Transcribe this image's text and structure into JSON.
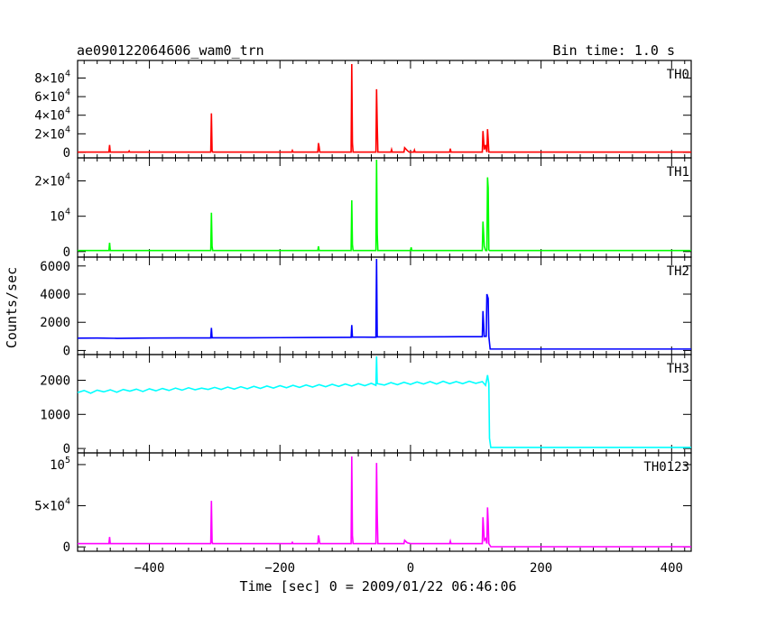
{
  "chart_data": {
    "type": "line",
    "title": "ae090122064606_wam0_trn",
    "subtitle": "Bin time: 1.0 s",
    "xlabel": "Time [sec] 0 = 2009/01/22 06:46:06",
    "ylabel": "Counts/sec",
    "xlim": [
      -510,
      430
    ],
    "x_ticks": [
      -400,
      -200,
      0,
      200,
      400
    ],
    "x_tick_labels": [
      "−400",
      "−200",
      "0",
      "200",
      "400"
    ],
    "grid": false,
    "panels": [
      {
        "name": "TH0",
        "color": "#ff0000",
        "ylim": [
          -3000,
          97000
        ],
        "yticks": [
          {
            "value": 0,
            "label": "0"
          },
          {
            "value": 20000,
            "label": "2×10",
            "exp": "4"
          },
          {
            "value": 40000,
            "label": "4×10",
            "exp": "4"
          },
          {
            "value": 60000,
            "label": "6×10",
            "exp": "4"
          },
          {
            "value": 80000,
            "label": "8×10",
            "exp": "4"
          }
        ],
        "points": [
          [
            -510,
            300
          ],
          [
            -462,
            300
          ],
          [
            -461,
            8000
          ],
          [
            -460,
            300
          ],
          [
            -432,
            300
          ],
          [
            -431,
            1500
          ],
          [
            -430,
            300
          ],
          [
            -306,
            300
          ],
          [
            -305,
            42000
          ],
          [
            -304,
            2000
          ],
          [
            -303,
            300
          ],
          [
            -182,
            300
          ],
          [
            -181,
            2000
          ],
          [
            -180,
            300
          ],
          [
            -142,
            300
          ],
          [
            -141,
            10000
          ],
          [
            -140,
            6000
          ],
          [
            -139,
            300
          ],
          [
            -91,
            300
          ],
          [
            -90,
            95000
          ],
          [
            -89,
            10000
          ],
          [
            -88,
            300
          ],
          [
            -53,
            300
          ],
          [
            -52,
            68000
          ],
          [
            -51,
            30000
          ],
          [
            -50,
            300
          ],
          [
            -30,
            300
          ],
          [
            -29,
            3000
          ],
          [
            -28,
            300
          ],
          [
            -10,
            300
          ],
          [
            -9,
            5000
          ],
          [
            -5,
            2000
          ],
          [
            -2,
            300
          ],
          [
            5,
            300
          ],
          [
            6,
            2500
          ],
          [
            7,
            300
          ],
          [
            60,
            300
          ],
          [
            61,
            4000
          ],
          [
            62,
            300
          ],
          [
            110,
            300
          ],
          [
            111,
            23000
          ],
          [
            113,
            3000
          ],
          [
            115,
            8000
          ],
          [
            117,
            300
          ],
          [
            118,
            25000
          ],
          [
            119,
            14000
          ],
          [
            120,
            300
          ],
          [
            430,
            300
          ]
        ]
      },
      {
        "name": "TH1",
        "color": "#00ff00",
        "ylim": [
          -800,
          26000
        ],
        "yticks": [
          {
            "value": 0,
            "label": "0"
          },
          {
            "value": 10000,
            "label": "10",
            "exp": "4"
          },
          {
            "value": 20000,
            "label": "2×10",
            "exp": "4"
          }
        ],
        "points": [
          [
            -510,
            300
          ],
          [
            -462,
            300
          ],
          [
            -461,
            2500
          ],
          [
            -460,
            300
          ],
          [
            -306,
            300
          ],
          [
            -305,
            11000
          ],
          [
            -304,
            1500
          ],
          [
            -303,
            300
          ],
          [
            -142,
            300
          ],
          [
            -141,
            1500
          ],
          [
            -140,
            300
          ],
          [
            -91,
            300
          ],
          [
            -90,
            14500
          ],
          [
            -89,
            2000
          ],
          [
            -88,
            300
          ],
          [
            -53,
            300
          ],
          [
            -52,
            26000
          ],
          [
            -51,
            5000
          ],
          [
            -50,
            300
          ],
          [
            0,
            300
          ],
          [
            1,
            1200
          ],
          [
            2,
            300
          ],
          [
            110,
            300
          ],
          [
            111,
            8500
          ],
          [
            113,
            1500
          ],
          [
            115,
            300
          ],
          [
            117,
            300
          ],
          [
            118,
            21000
          ],
          [
            119,
            18000
          ],
          [
            120,
            500
          ],
          [
            121,
            300
          ],
          [
            430,
            300
          ]
        ]
      },
      {
        "name": "TH2",
        "color": "#0000ff",
        "ylim": [
          -100,
          6500
        ],
        "yticks": [
          {
            "value": 0,
            "label": "0"
          },
          {
            "value": 2000,
            "label": "2000"
          },
          {
            "value": 4000,
            "label": "4000"
          },
          {
            "value": 6000,
            "label": "6000"
          }
        ],
        "points": [
          [
            -510,
            870
          ],
          [
            -480,
            880
          ],
          [
            -450,
            860
          ],
          [
            -400,
            880
          ],
          [
            -350,
            890
          ],
          [
            -306,
            890
          ],
          [
            -305,
            1600
          ],
          [
            -304,
            900
          ],
          [
            -250,
            900
          ],
          [
            -200,
            910
          ],
          [
            -150,
            920
          ],
          [
            -91,
            930
          ],
          [
            -90,
            1800
          ],
          [
            -89,
            950
          ],
          [
            -53,
            940
          ],
          [
            -52,
            6500
          ],
          [
            -51,
            960
          ],
          [
            0,
            960
          ],
          [
            50,
            970
          ],
          [
            100,
            980
          ],
          [
            110,
            980
          ],
          [
            111,
            2800
          ],
          [
            113,
            1000
          ],
          [
            116,
            1000
          ],
          [
            117,
            4000
          ],
          [
            119,
            3700
          ],
          [
            120,
            1000
          ],
          [
            122,
            100
          ],
          [
            430,
            100
          ]
        ]
      },
      {
        "name": "TH3",
        "color": "#00ffff",
        "ylim": [
          -50,
          2700
        ],
        "yticks": [
          {
            "value": 0,
            "label": "0"
          },
          {
            "value": 1000,
            "label": "1000"
          },
          {
            "value": 2000,
            "label": "2000"
          }
        ],
        "points": [
          [
            -510,
            1640
          ],
          [
            -500,
            1700
          ],
          [
            -490,
            1620
          ],
          [
            -480,
            1710
          ],
          [
            -470,
            1660
          ],
          [
            -460,
            1720
          ],
          [
            -450,
            1650
          ],
          [
            -440,
            1730
          ],
          [
            -430,
            1680
          ],
          [
            -420,
            1740
          ],
          [
            -410,
            1670
          ],
          [
            -400,
            1750
          ],
          [
            -390,
            1690
          ],
          [
            -380,
            1760
          ],
          [
            -370,
            1700
          ],
          [
            -360,
            1770
          ],
          [
            -350,
            1710
          ],
          [
            -340,
            1780
          ],
          [
            -330,
            1720
          ],
          [
            -320,
            1770
          ],
          [
            -310,
            1730
          ],
          [
            -300,
            1790
          ],
          [
            -290,
            1730
          ],
          [
            -280,
            1800
          ],
          [
            -270,
            1740
          ],
          [
            -260,
            1810
          ],
          [
            -250,
            1750
          ],
          [
            -240,
            1820
          ],
          [
            -230,
            1760
          ],
          [
            -220,
            1830
          ],
          [
            -210,
            1770
          ],
          [
            -200,
            1840
          ],
          [
            -190,
            1780
          ],
          [
            -180,
            1850
          ],
          [
            -170,
            1790
          ],
          [
            -160,
            1860
          ],
          [
            -150,
            1800
          ],
          [
            -140,
            1870
          ],
          [
            -130,
            1810
          ],
          [
            -120,
            1880
          ],
          [
            -110,
            1820
          ],
          [
            -100,
            1890
          ],
          [
            -90,
            1830
          ],
          [
            -80,
            1900
          ],
          [
            -70,
            1840
          ],
          [
            -60,
            1910
          ],
          [
            -53,
            1850
          ],
          [
            -52,
            2700
          ],
          [
            -51,
            1900
          ],
          [
            -40,
            1860
          ],
          [
            -30,
            1930
          ],
          [
            -20,
            1870
          ],
          [
            -10,
            1940
          ],
          [
            0,
            1880
          ],
          [
            10,
            1950
          ],
          [
            20,
            1890
          ],
          [
            30,
            1960
          ],
          [
            40,
            1890
          ],
          [
            50,
            1970
          ],
          [
            60,
            1900
          ],
          [
            70,
            1960
          ],
          [
            80,
            1900
          ],
          [
            90,
            1970
          ],
          [
            100,
            1910
          ],
          [
            110,
            1960
          ],
          [
            115,
            1850
          ],
          [
            118,
            2150
          ],
          [
            120,
            1900
          ],
          [
            121,
            300
          ],
          [
            123,
            30
          ],
          [
            430,
            30
          ]
        ]
      },
      {
        "name": "TH0123",
        "color": "#ff00ff",
        "ylim": [
          -2000,
          112000
        ],
        "yticks": [
          {
            "value": 0,
            "label": "0"
          },
          {
            "value": 50000,
            "label": "5×10",
            "exp": "4"
          },
          {
            "value": 100000,
            "label": "10",
            "exp": "5"
          }
        ],
        "points": [
          [
            -510,
            4000
          ],
          [
            -462,
            4000
          ],
          [
            -461,
            12000
          ],
          [
            -460,
            4000
          ],
          [
            -306,
            4000
          ],
          [
            -305,
            56000
          ],
          [
            -304,
            6000
          ],
          [
            -303,
            4000
          ],
          [
            -182,
            4000
          ],
          [
            -181,
            5500
          ],
          [
            -180,
            4000
          ],
          [
            -142,
            4000
          ],
          [
            -141,
            14000
          ],
          [
            -140,
            10000
          ],
          [
            -139,
            4000
          ],
          [
            -91,
            4000
          ],
          [
            -90,
            110000
          ],
          [
            -89,
            14000
          ],
          [
            -88,
            4000
          ],
          [
            -53,
            4000
          ],
          [
            -52,
            102000
          ],
          [
            -51,
            40000
          ],
          [
            -50,
            4000
          ],
          [
            -10,
            4000
          ],
          [
            -9,
            8000
          ],
          [
            -5,
            5000
          ],
          [
            0,
            4000
          ],
          [
            60,
            4000
          ],
          [
            61,
            7000
          ],
          [
            62,
            4000
          ],
          [
            110,
            4000
          ],
          [
            111,
            36000
          ],
          [
            113,
            8000
          ],
          [
            115,
            10000
          ],
          [
            117,
            4000
          ],
          [
            118,
            48000
          ],
          [
            119,
            30000
          ],
          [
            120,
            4000
          ],
          [
            123,
            200
          ],
          [
            430,
            200
          ]
        ]
      }
    ]
  }
}
